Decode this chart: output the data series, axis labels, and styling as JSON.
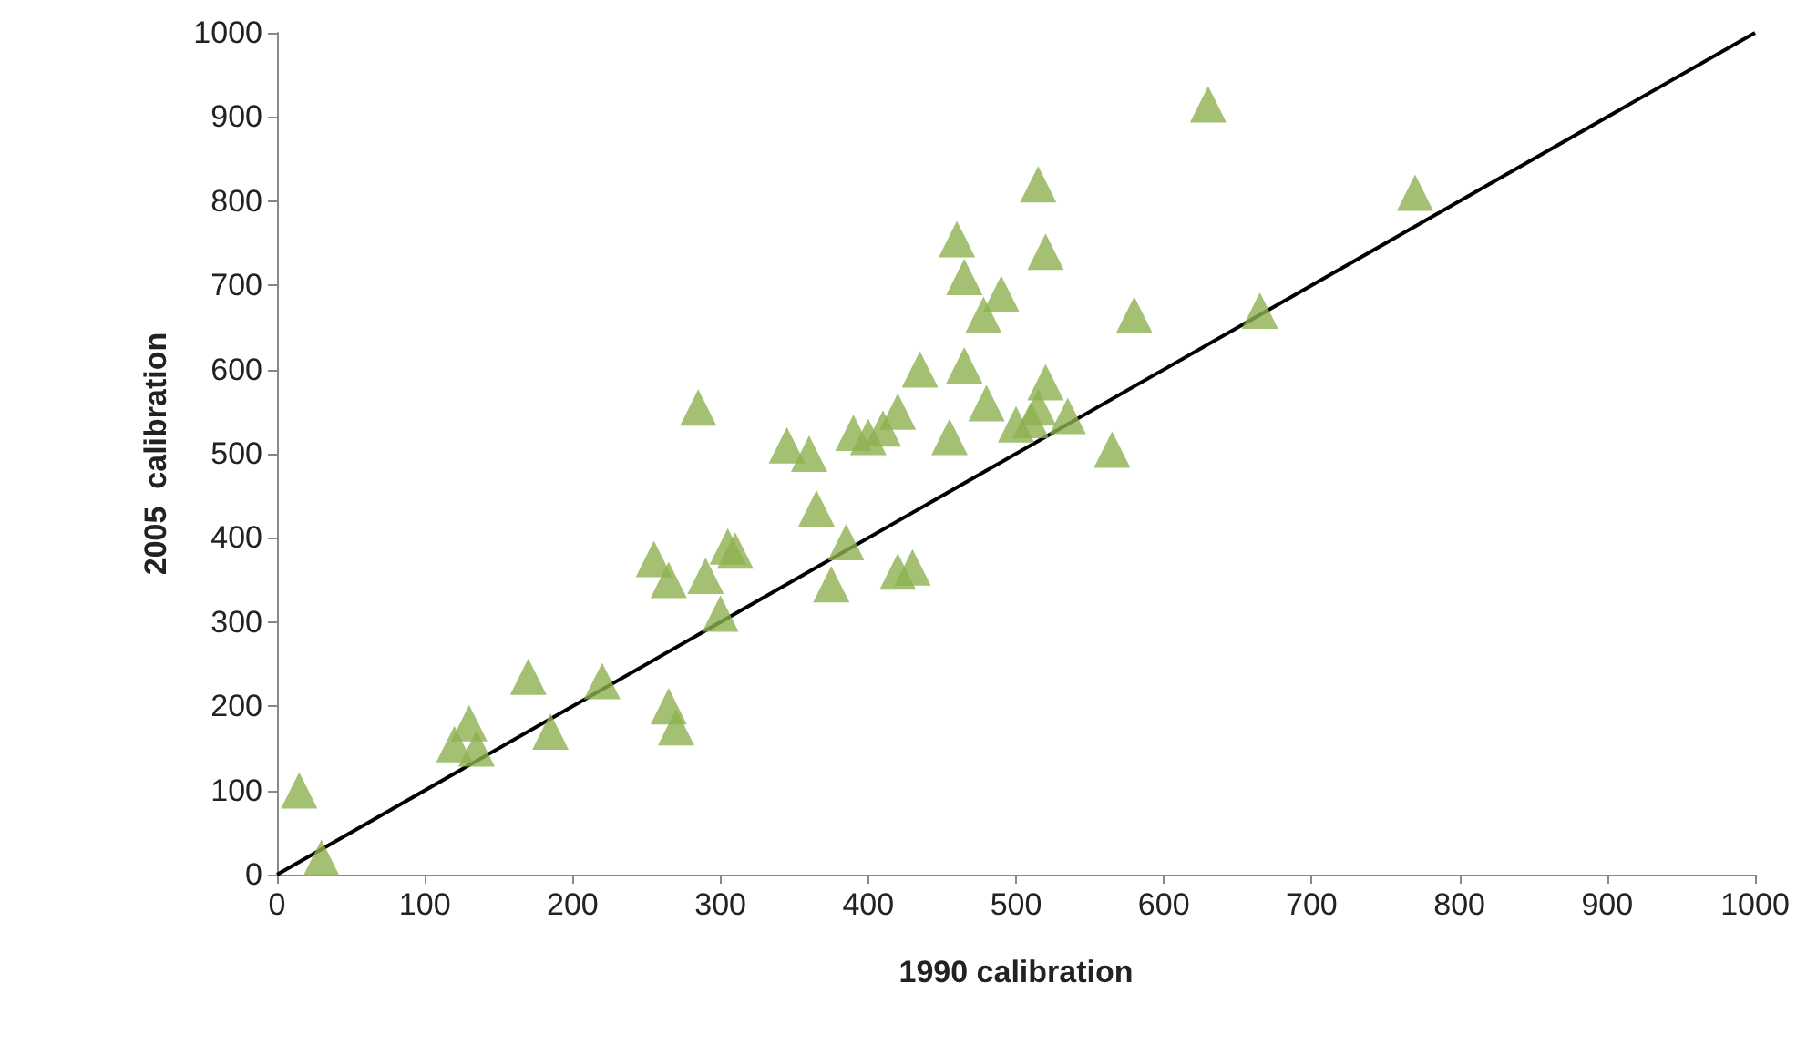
{
  "chart_data": {
    "type": "scatter",
    "xlabel": "1990 calibration",
    "ylabel": "2005  calibration",
    "xlim": [
      0,
      1000
    ],
    "ylim": [
      0,
      1000
    ],
    "xticks": [
      0,
      100,
      200,
      300,
      400,
      500,
      600,
      700,
      800,
      900,
      1000
    ],
    "yticks": [
      0,
      100,
      200,
      300,
      400,
      500,
      600,
      700,
      800,
      900,
      1000
    ],
    "grid": false,
    "marker": "triangle",
    "series": [
      {
        "color": "#8cb050",
        "x": [
          15,
          30,
          120,
          130,
          135,
          170,
          185,
          220,
          265,
          270,
          255,
          265,
          285,
          290,
          300,
          305,
          310,
          345,
          360,
          365,
          375,
          385,
          390,
          400,
          410,
          420,
          420,
          430,
          435,
          455,
          460,
          465,
          465,
          478,
          480,
          490,
          500,
          510,
          515,
          515,
          520,
          520,
          535,
          565,
          580,
          630,
          665,
          770
        ],
        "values": [
          100,
          20,
          155,
          180,
          150,
          235,
          170,
          230,
          200,
          175,
          375,
          350,
          555,
          355,
          310,
          390,
          385,
          510,
          500,
          435,
          345,
          395,
          525,
          520,
          530,
          550,
          360,
          365,
          600,
          520,
          755,
          710,
          605,
          665,
          560,
          690,
          535,
          540,
          820,
          555,
          740,
          585,
          545,
          505,
          665,
          915,
          670,
          810
        ]
      },
      {
        "type": "line",
        "color": "#000000",
        "marker": "none",
        "line_style": "solid",
        "x": [
          0,
          1000
        ],
        "values": [
          0,
          1000
        ]
      }
    ]
  }
}
